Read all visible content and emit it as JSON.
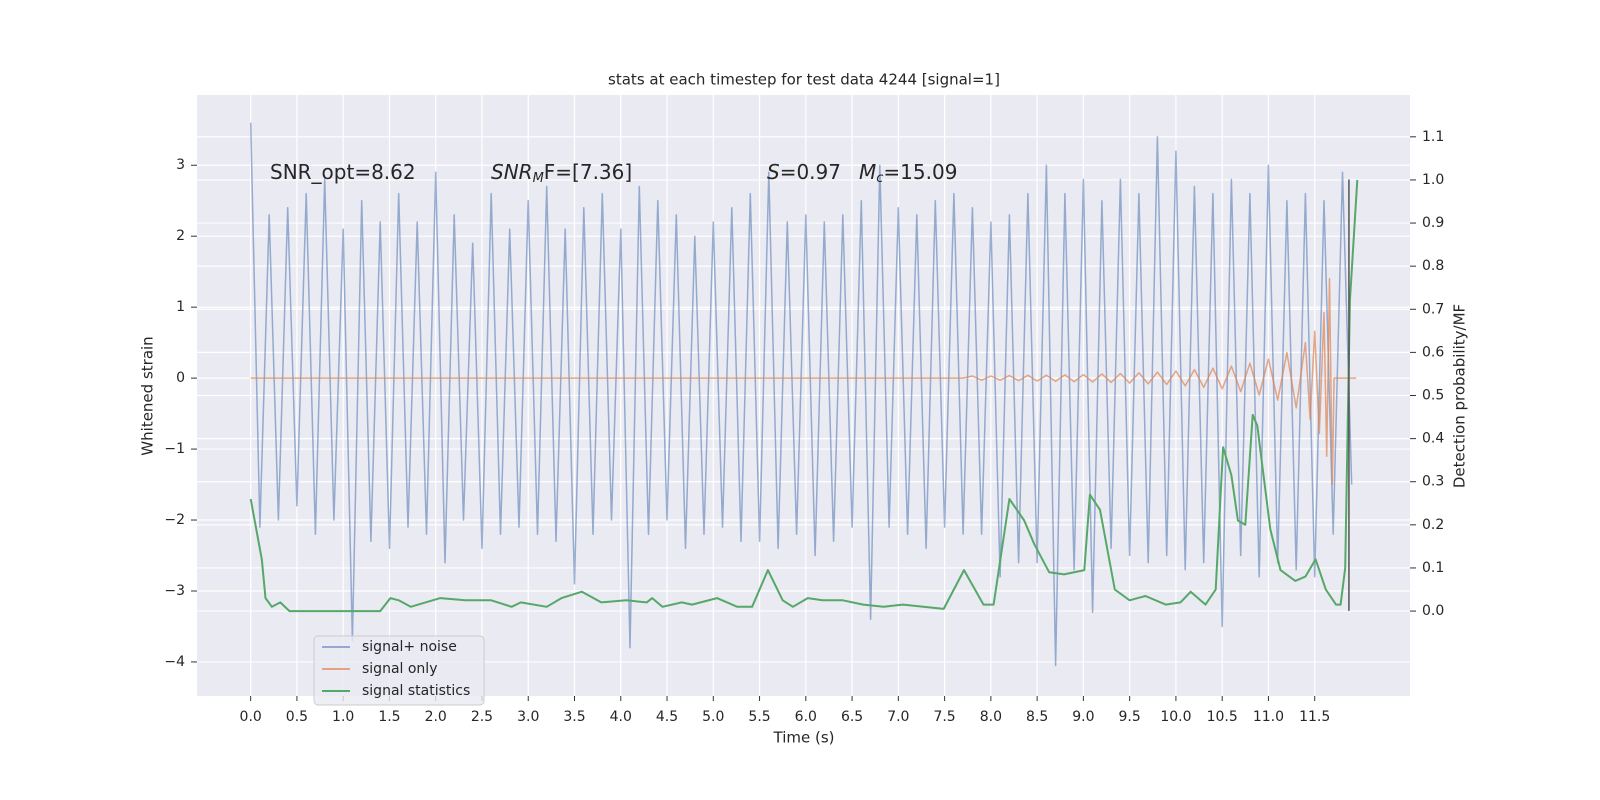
{
  "chart_data": {
    "type": "line",
    "title": "stats at each timestep for test data 4244 [signal=1]",
    "xlabel": "Time (s)",
    "ylabel": "Whitened strain",
    "y2label": "Detection probability/MF",
    "xlim": [
      -0.58,
      12.53
    ],
    "ylim": [
      -4.48,
      3.99
    ],
    "y2lim": [
      -0.197,
      1.197
    ],
    "xticks": [
      {
        "value": 0,
        "label": "0.0"
      },
      {
        "value": 0.5,
        "label": "0.5"
      },
      {
        "value": 1,
        "label": "1.0"
      },
      {
        "value": 1.5,
        "label": "1.5"
      },
      {
        "value": 2,
        "label": "2.0"
      },
      {
        "value": 2.5,
        "label": "2.5"
      },
      {
        "value": 3,
        "label": "3.0"
      },
      {
        "value": 3.5,
        "label": "3.5"
      },
      {
        "value": 4,
        "label": "4.0"
      },
      {
        "value": 4.5,
        "label": "4.5"
      },
      {
        "value": 5,
        "label": "5.0"
      },
      {
        "value": 5.5,
        "label": "5.5"
      },
      {
        "value": 6,
        "label": "6.0"
      },
      {
        "value": 6.5,
        "label": "6.5"
      },
      {
        "value": 7,
        "label": "7.0"
      },
      {
        "value": 7.5,
        "label": "7.5"
      },
      {
        "value": 8,
        "label": "8.0"
      },
      {
        "value": 8.5,
        "label": "8.5"
      },
      {
        "value": 9,
        "label": "9.0"
      },
      {
        "value": 9.5,
        "label": "9.5"
      },
      {
        "value": 10,
        "label": "10.0"
      },
      {
        "value": 10.5,
        "label": "10.5"
      },
      {
        "value": 11,
        "label": "11.0"
      },
      {
        "value": 11.5,
        "label": "11.5"
      }
    ],
    "yticks": [
      {
        "value": -4,
        "label": "−4"
      },
      {
        "value": -3,
        "label": "−3"
      },
      {
        "value": -2,
        "label": "−2"
      },
      {
        "value": -1,
        "label": "−1"
      },
      0,
      1,
      2,
      3
    ],
    "y2ticks": [
      {
        "value": 0,
        "label": "0.0"
      },
      {
        "value": 0.1,
        "label": "0.1"
      },
      {
        "value": 0.2,
        "label": "0.2"
      },
      {
        "value": 0.3,
        "label": "0.3"
      },
      {
        "value": 0.4,
        "label": "0.4"
      },
      {
        "value": 0.5,
        "label": "0.5"
      },
      {
        "value": 0.6,
        "label": "0.6"
      },
      {
        "value": 0.7,
        "label": "0.7"
      },
      {
        "value": 0.8,
        "label": "0.8"
      },
      {
        "value": 0.9,
        "label": "0.9"
      },
      {
        "value": 1,
        "label": "1.0"
      },
      {
        "value": 1.1,
        "label": "1.1"
      }
    ],
    "grid": true,
    "legend": "lower left",
    "series": [
      {
        "name": "signal+ noise",
        "color": "#4c72b0",
        "opacity": 0.55,
        "x": [
          0,
          0.1,
          0.2,
          0.3,
          0.4,
          0.5,
          0.6,
          0.7,
          0.8,
          0.9,
          1,
          1.1,
          1.2,
          1.3,
          1.4,
          1.5,
          1.6,
          1.7,
          1.8,
          1.9,
          2,
          2.1,
          2.2,
          2.3,
          2.4,
          2.5,
          2.6,
          2.7,
          2.8,
          2.9,
          3,
          3.1,
          3.2,
          3.3,
          3.4,
          3.5,
          3.6,
          3.7,
          3.8,
          3.9,
          4,
          4.1,
          4.2,
          4.3,
          4.4,
          4.5,
          4.6,
          4.7,
          4.8,
          4.9,
          5,
          5.1,
          5.2,
          5.3,
          5.4,
          5.5,
          5.6,
          5.7,
          5.8,
          5.9,
          6,
          6.1,
          6.2,
          6.3,
          6.4,
          6.5,
          6.6,
          6.7,
          6.8,
          6.9,
          7,
          7.1,
          7.2,
          7.3,
          7.4,
          7.5,
          7.6,
          7.7,
          7.8,
          7.9,
          8,
          8.1,
          8.2,
          8.3,
          8.4,
          8.5,
          8.6,
          8.7,
          8.8,
          8.9,
          9,
          9.1,
          9.2,
          9.3,
          9.4,
          9.5,
          9.6,
          9.7,
          9.8,
          9.9,
          10,
          10.1,
          10.2,
          10.3,
          10.4,
          10.5,
          10.6,
          10.7,
          10.8,
          10.9,
          11,
          11.1,
          11.2,
          11.3,
          11.4,
          11.5,
          11.6,
          11.7,
          11.8,
          11.9
        ],
        "values": [
          3.6,
          -2.1,
          2.3,
          -2.0,
          2.4,
          -1.8,
          2.6,
          -2.2,
          2.8,
          -2.0,
          2.1,
          -3.7,
          2.5,
          -2.3,
          2.2,
          -2.4,
          2.6,
          -2.1,
          2.2,
          -2.2,
          2.9,
          -2.6,
          2.3,
          -2.0,
          1.9,
          -2.4,
          2.6,
          -2.2,
          2.1,
          -2.1,
          2.5,
          -2.2,
          2.7,
          -2.3,
          2.1,
          -2.9,
          2.4,
          -2.2,
          2.6,
          -2.0,
          2.1,
          -3.8,
          2.7,
          -2.2,
          2.5,
          -2.0,
          2.3,
          -2.4,
          2.0,
          -2.2,
          2.2,
          -2.1,
          2.4,
          -2.3,
          2.6,
          -2.3,
          2.9,
          -2.4,
          2.2,
          -2.2,
          2.3,
          -2.5,
          2.2,
          -2.3,
          2.3,
          -2.1,
          2.5,
          -3.4,
          3.0,
          -2.1,
          2.4,
          -2.2,
          2.3,
          -2.4,
          2.5,
          -2.1,
          2.6,
          -2.2,
          2.4,
          -2.2,
          2.2,
          -2.8,
          2.3,
          -2.6,
          2.6,
          -2.6,
          3.0,
          -4.05,
          2.6,
          -2.7,
          2.8,
          -3.3,
          2.5,
          -2.4,
          2.8,
          -2.5,
          2.6,
          -2.6,
          3.4,
          -2.5,
          3.2,
          -2.7,
          2.7,
          -2.6,
          2.6,
          -3.5,
          2.8,
          -2.5,
          2.6,
          -2.8,
          3.0,
          -2.6,
          2.5,
          -2.7,
          2.6,
          -2.8,
          2.5,
          -2.2,
          2.9,
          -1.5
        ]
      },
      {
        "name": "signal only",
        "color": "#dd8452",
        "opacity": 0.7,
        "x": [
          0,
          7.7,
          7.8,
          7.9,
          8.0,
          8.1,
          8.2,
          8.3,
          8.4,
          8.5,
          8.6,
          8.7,
          8.8,
          8.9,
          9.0,
          9.1,
          9.2,
          9.3,
          9.4,
          9.5,
          9.6,
          9.7,
          9.8,
          9.9,
          10.0,
          10.1,
          10.2,
          10.3,
          10.4,
          10.5,
          10.6,
          10.7,
          10.8,
          10.9,
          11.0,
          11.1,
          11.2,
          11.3,
          11.4,
          11.45,
          11.5,
          11.55,
          11.6,
          11.63,
          11.66,
          11.69,
          11.71,
          11.95
        ],
        "values": [
          0,
          0,
          0.03,
          -0.03,
          0.03,
          -0.03,
          0.035,
          -0.035,
          0.04,
          -0.04,
          0.04,
          -0.045,
          0.045,
          -0.05,
          0.05,
          -0.055,
          0.06,
          -0.06,
          0.065,
          -0.07,
          0.075,
          -0.08,
          0.085,
          -0.09,
          0.1,
          -0.11,
          0.12,
          -0.13,
          0.14,
          -0.15,
          0.17,
          -0.19,
          0.21,
          -0.24,
          0.27,
          -0.31,
          0.36,
          -0.42,
          0.5,
          -0.58,
          0.66,
          -0.78,
          0.92,
          -1.1,
          1.4,
          -1.5,
          0,
          0
        ]
      },
      {
        "name": "signal statistics",
        "color": "#55a868",
        "opacity": 1,
        "axis": "y2",
        "x": [
          0,
          0.12,
          0.16,
          0.23,
          0.32,
          0.42,
          0.53,
          1.4,
          1.51,
          1.6,
          1.73,
          2.05,
          2.32,
          2.6,
          2.82,
          2.92,
          3.2,
          3.36,
          3.58,
          3.79,
          4.06,
          4.28,
          4.34,
          4.45,
          4.66,
          4.77,
          5.04,
          5.26,
          5.42,
          5.59,
          5.75,
          5.86,
          6.02,
          6.18,
          6.4,
          6.62,
          6.84,
          7.05,
          7.49,
          7.71,
          7.92,
          8.03,
          8.2,
          8.36,
          8.47,
          8.63,
          8.79,
          9.01,
          9.07,
          9.18,
          9.34,
          9.5,
          9.67,
          9.89,
          10.05,
          10.16,
          10.32,
          10.43,
          10.51,
          10.6,
          10.67,
          10.75,
          10.83,
          10.88,
          11.02,
          11.13,
          11.29,
          11.4,
          11.51,
          11.62,
          11.73,
          11.78,
          11.83,
          11.88,
          11.96
        ],
        "values": [
          0.26,
          0.12,
          0.03,
          0.01,
          0.02,
          0,
          0,
          0,
          0.03,
          0.025,
          0.01,
          0.03,
          0.025,
          0.025,
          0.01,
          0.02,
          0.01,
          0.03,
          0.045,
          0.02,
          0.025,
          0.02,
          0.03,
          0.01,
          0.02,
          0.015,
          0.03,
          0.01,
          0.01,
          0.095,
          0.025,
          0.01,
          0.03,
          0.025,
          0.025,
          0.015,
          0.01,
          0.015,
          0.005,
          0.095,
          0.015,
          0.015,
          0.26,
          0.21,
          0.155,
          0.09,
          0.085,
          0.095,
          0.27,
          0.235,
          0.05,
          0.025,
          0.035,
          0.015,
          0.02,
          0.045,
          0.015,
          0.05,
          0.38,
          0.315,
          0.21,
          0.2,
          0.455,
          0.43,
          0.19,
          0.095,
          0.07,
          0.08,
          0.12,
          0.05,
          0.015,
          0.015,
          0.1,
          0.72,
          1.0
        ]
      }
    ],
    "vline": {
      "x": 11.87,
      "y": [
        -3.28,
        2.8
      ],
      "color": "#555555"
    },
    "annotations": [
      [
        {
          "text": "SNR_opt=8.62",
          "style": "normal"
        }
      ],
      [
        {
          "text": "SNR",
          "style": "italic"
        },
        {
          "text": "M",
          "style": "sub"
        },
        {
          "text": "F=[7.36]",
          "style": "normal"
        }
      ],
      [
        {
          "text": "S",
          "style": "italic"
        },
        {
          "text": "=0.97",
          "style": "normal"
        }
      ],
      [
        {
          "text": "M",
          "style": "italic"
        },
        {
          "text": "c",
          "style": "sub"
        },
        {
          "text": "=15.09",
          "style": "normal"
        }
      ]
    ]
  }
}
